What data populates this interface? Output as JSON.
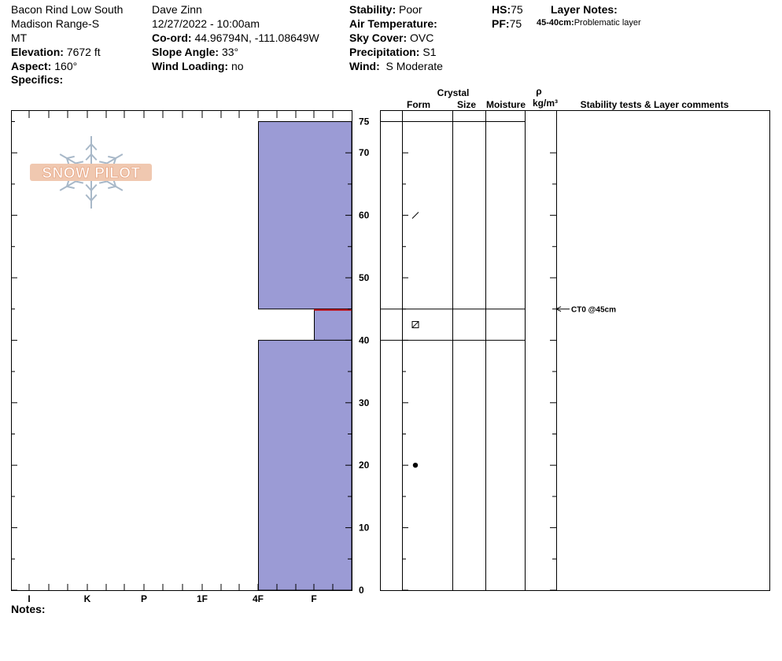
{
  "site": {
    "location": "Bacon Rind Low South",
    "range": "Madison Range-S",
    "state": "MT",
    "elevation_label": "Elevation:",
    "elevation": "7672 ft",
    "aspect_label": "Aspect:",
    "aspect": "160°",
    "specifics_label": "Specifics:"
  },
  "observer": {
    "name": "Dave Zinn",
    "datetime": "12/27/2022 - 10:00am",
    "coord_label": "Co-ord:",
    "coord": "44.96794N, -111.08649W",
    "slope_label": "Slope Angle:",
    "slope": "33°",
    "wind_loading_label": "Wind Loading:",
    "wind_loading": "no"
  },
  "conditions": {
    "stability_label": "Stability:",
    "stability": "Poor",
    "air_temp_label": "Air Temperature:",
    "air_temp": "",
    "sky_label": "Sky Cover:",
    "sky": "OVC",
    "precip_label": "Precipitation:",
    "precip": "S1",
    "wind_label": "Wind:",
    "wind": "S Moderate"
  },
  "depths": {
    "hs_label": "HS:",
    "hs": "75",
    "pf_label": "PF:",
    "pf": "75"
  },
  "layer_notes": {
    "title": "Layer Notes:",
    "range": "45-40cm:",
    "text": "Problematic layer"
  },
  "notes_label": "Notes:",
  "logo_text": "SNOW PILOT",
  "colors": {
    "layer_fill": "#9b9bd5",
    "weak_layer_line": "#c00000",
    "logo_fill": "#f0c8b0",
    "logo_snowflake": "#a8b8c8"
  },
  "chart_data": {
    "type": "snow-profile",
    "y_axis": {
      "min": 0,
      "max": 75,
      "ticks": [
        0,
        10,
        20,
        30,
        40,
        50,
        60,
        70,
        75
      ]
    },
    "hardness_scale": [
      "I",
      "K",
      "P",
      "1F",
      "4F",
      "F"
    ],
    "hardness_scale_note": "ordered left-to-right as printed",
    "layers": [
      {
        "top": 75,
        "bottom": 45,
        "hardness": "4F",
        "form": "precip-particle"
      },
      {
        "top": 45,
        "bottom": 40,
        "hardness": "F",
        "form": "faceted"
      },
      {
        "top": 40,
        "bottom": 0,
        "hardness": "4F",
        "form": "rounded"
      }
    ],
    "weak_layer_depth": 45,
    "columns": {
      "crystal": "Crystal",
      "form": "Form",
      "size": "Size",
      "moisture": "Moisture",
      "rho": "ρ",
      "density_unit": "kg/m³",
      "comments": "Stability tests & Layer comments"
    },
    "tests": [
      {
        "depth": 45,
        "label": "CT0 @45cm"
      }
    ]
  }
}
